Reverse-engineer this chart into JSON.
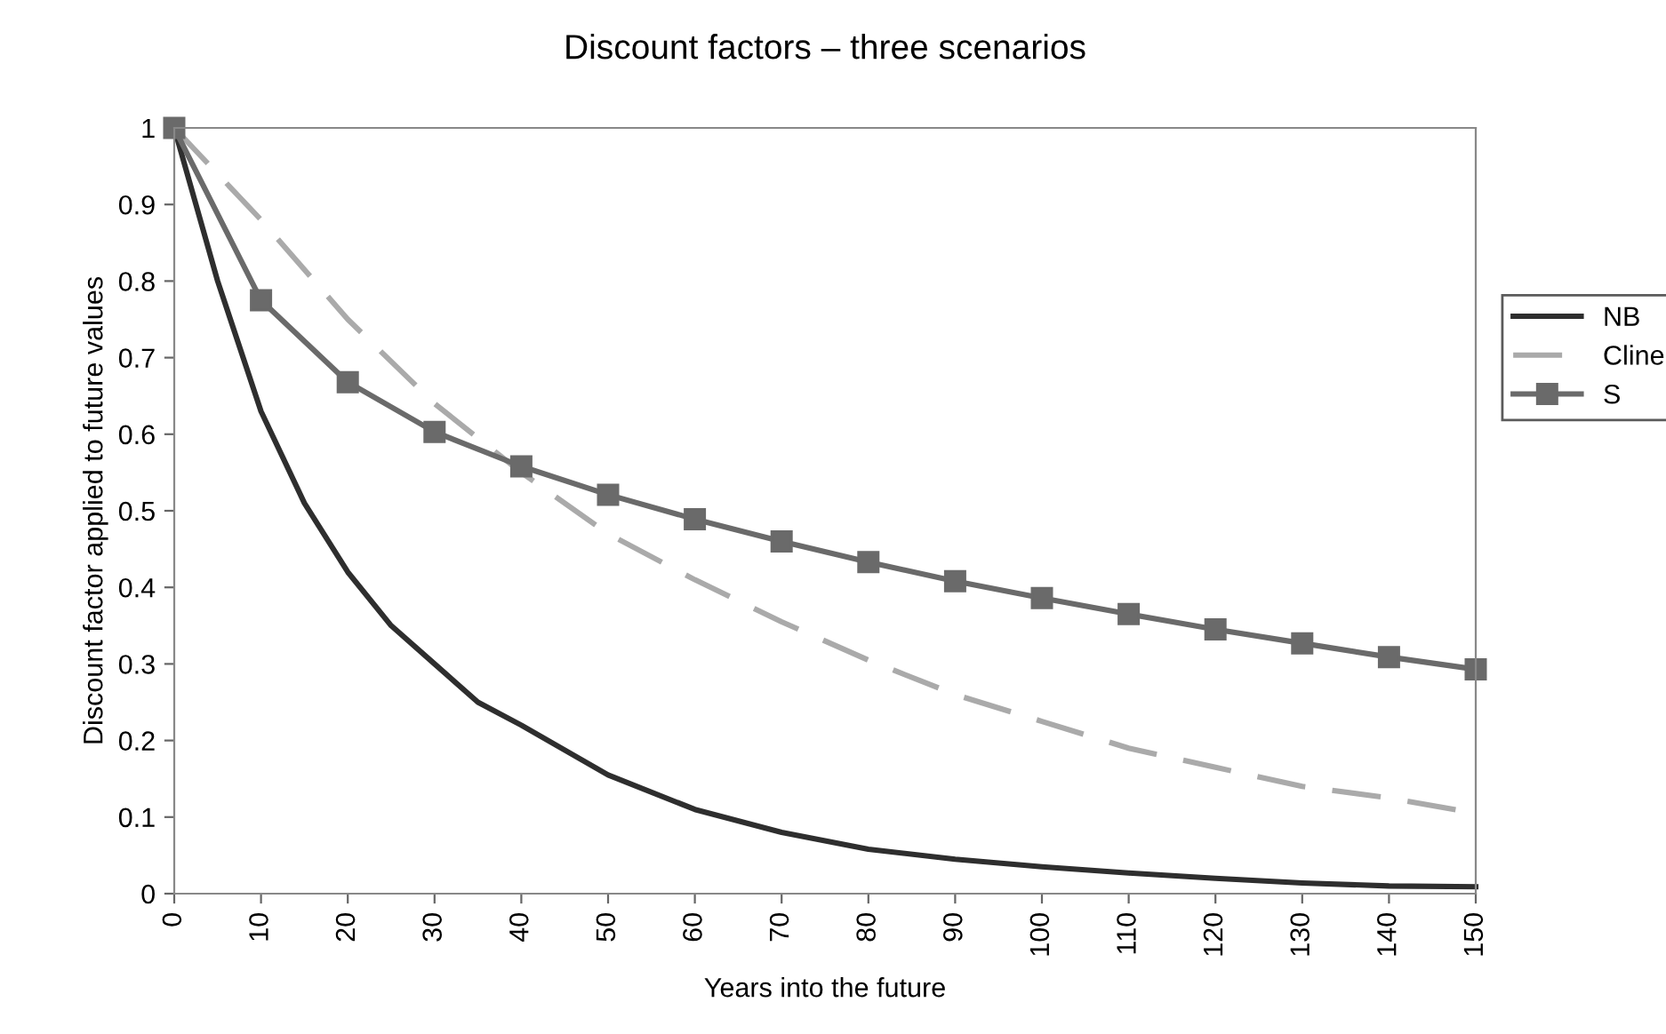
{
  "chart_data": {
    "type": "line",
    "title": "Discount factors – three scenarios",
    "xlabel": "Years into the future",
    "ylabel": "Discount factor applied to future values",
    "xlim": [
      0,
      150
    ],
    "xticks": [
      0,
      10,
      20,
      30,
      40,
      50,
      60,
      70,
      80,
      90,
      100,
      110,
      120,
      130,
      140,
      150
    ],
    "ylim": [
      0,
      1
    ],
    "yticks": [
      0,
      0.1,
      0.2,
      0.3,
      0.4,
      0.5,
      0.6,
      0.7,
      0.8,
      0.9,
      1
    ],
    "grid": false,
    "legend": "right",
    "series": [
      {
        "name": "NB",
        "color": "#2e2e2e",
        "line_style": "solid",
        "marker": "none",
        "x": [
          0,
          5,
          10,
          15,
          20,
          25,
          30,
          35,
          40,
          50,
          60,
          70,
          80,
          90,
          100,
          110,
          120,
          130,
          140,
          150
        ],
        "values": [
          1,
          0.8,
          0.63,
          0.51,
          0.42,
          0.35,
          0.3,
          0.25,
          0.22,
          0.155,
          0.11,
          0.08,
          0.058,
          0.045,
          0.035,
          0.027,
          0.02,
          0.014,
          0.01,
          0.009
        ]
      },
      {
        "name": "Cline",
        "color": "#aaaaaa",
        "line_style": "dashed",
        "marker": "none",
        "x": [
          0,
          10,
          20,
          30,
          40,
          50,
          60,
          70,
          80,
          90,
          100,
          110,
          120,
          130,
          140,
          150
        ],
        "values": [
          1,
          0.88,
          0.75,
          0.64,
          0.55,
          0.47,
          0.41,
          0.355,
          0.305,
          0.26,
          0.225,
          0.19,
          0.165,
          0.14,
          0.125,
          0.105
        ]
      },
      {
        "name": "S",
        "color": "#6a6a6a",
        "line_style": "solid",
        "marker": "square",
        "x": [
          0,
          10,
          20,
          30,
          40,
          50,
          60,
          70,
          80,
          90,
          100,
          110,
          120,
          130,
          140,
          150
        ],
        "values": [
          1,
          0.775,
          0.668,
          0.603,
          0.558,
          0.521,
          0.489,
          0.46,
          0.433,
          0.408,
          0.386,
          0.365,
          0.345,
          0.327,
          0.309,
          0.293
        ]
      }
    ]
  }
}
